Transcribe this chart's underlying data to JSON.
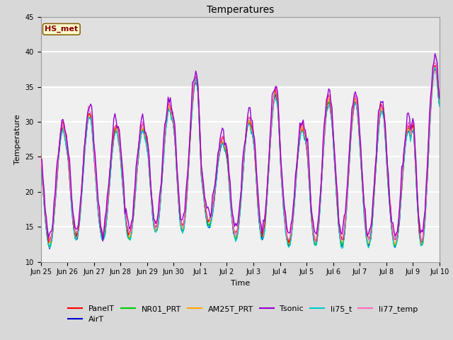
{
  "title": "Temperatures",
  "xlabel": "Time",
  "ylabel": "Temperature",
  "ylim": [
    10,
    45
  ],
  "yticks": [
    10,
    15,
    20,
    25,
    30,
    35,
    40,
    45
  ],
  "annotation_text": "HS_met",
  "annotation_color": "#8B0000",
  "annotation_bg": "#FFFACD",
  "annotation_border": "#8B6914",
  "series_colors": {
    "PanelT": "#FF0000",
    "AirT": "#0000CD",
    "NR01_PRT": "#00CC00",
    "AM25T_PRT": "#FFA500",
    "Tsonic": "#9400D3",
    "li75_t": "#00CCCC",
    "li77_temp": "#FF69B4"
  },
  "background_color": "#D8D8D8",
  "plot_bg": "#F0F0F0",
  "grid_color": "#FFFFFF",
  "shaded_band": [
    35,
    45
  ],
  "shaded_color": "#E0E0E0",
  "tick_labels": [
    "Jun 25",
    "Jun 26",
    "Jun 27",
    "Jun 28",
    "Jun 29",
    "Jun 30",
    "Jul 1",
    "Jul 2",
    "Jul 3",
    "Jul 4",
    "Jul 5",
    "Jul 6",
    "Jul 7",
    "Jul 8",
    "Jul 9",
    "Jul 10"
  ],
  "tick_positions": [
    0,
    1,
    2,
    3,
    4,
    5,
    6,
    7,
    8,
    9,
    10,
    11,
    12,
    13,
    14,
    15
  ],
  "day_peaks": [
    29,
    31,
    29,
    29,
    32,
    36,
    27,
    30,
    34,
    29,
    33,
    33,
    32,
    29,
    38
  ],
  "day_troughs": [
    12,
    13,
    13,
    13,
    14,
    14,
    15,
    13,
    13,
    12,
    12,
    12,
    12,
    12,
    12
  ]
}
